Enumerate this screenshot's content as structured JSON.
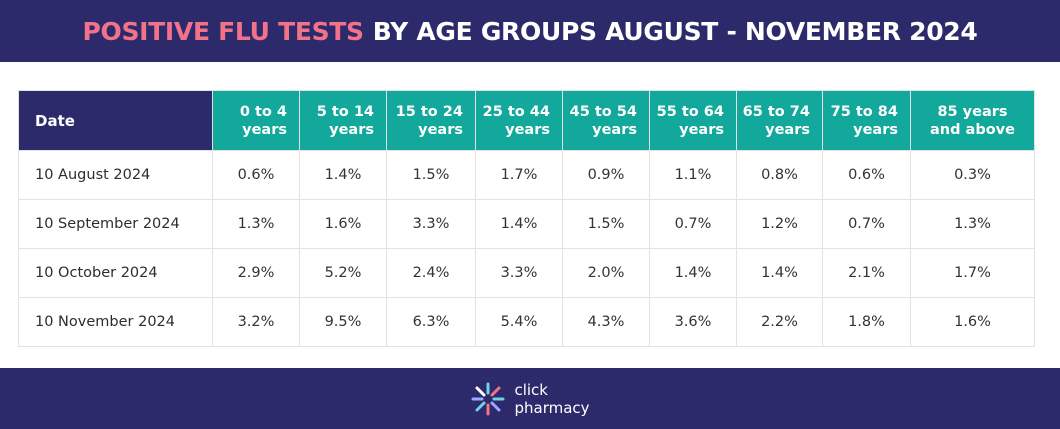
{
  "header": {
    "title_highlight": "POSITIVE FLU TESTS",
    "title_rest": "BY AGE GROUPS AUGUST - NOVEMBER 2024"
  },
  "table": {
    "columns": [
      [
        "Date"
      ],
      [
        "0 to 4",
        "years"
      ],
      [
        "5 to 14",
        "years"
      ],
      [
        "15 to 24",
        "years"
      ],
      [
        "25 to 44",
        "years"
      ],
      [
        "45 to 54",
        "years"
      ],
      [
        "55 to 64",
        "years"
      ],
      [
        "65 to 74",
        "years"
      ],
      [
        "75 to 84",
        "years"
      ],
      [
        "85 years",
        "and above"
      ]
    ],
    "rows": [
      [
        "10 August 2024",
        "0.6%",
        "1.4%",
        "1.5%",
        "1.7%",
        "0.9%",
        "1.1%",
        "0.8%",
        "0.6%",
        "0.3%"
      ],
      [
        "10 September 2024",
        "1.3%",
        "1.6%",
        "3.3%",
        "1.4%",
        "1.5%",
        "0.7%",
        "1.2%",
        "0.7%",
        "1.3%"
      ],
      [
        "10 October 2024",
        "2.9%",
        "5.2%",
        "2.4%",
        "3.3%",
        "2.0%",
        "1.4%",
        "1.4%",
        "2.1%",
        "1.7%"
      ],
      [
        "10 November 2024",
        "3.2%",
        "9.5%",
        "6.3%",
        "5.4%",
        "4.3%",
        "3.6%",
        "2.2%",
        "1.8%",
        "1.6%"
      ]
    ]
  },
  "footer": {
    "brand": [
      "click",
      "pharmacy"
    ]
  }
}
